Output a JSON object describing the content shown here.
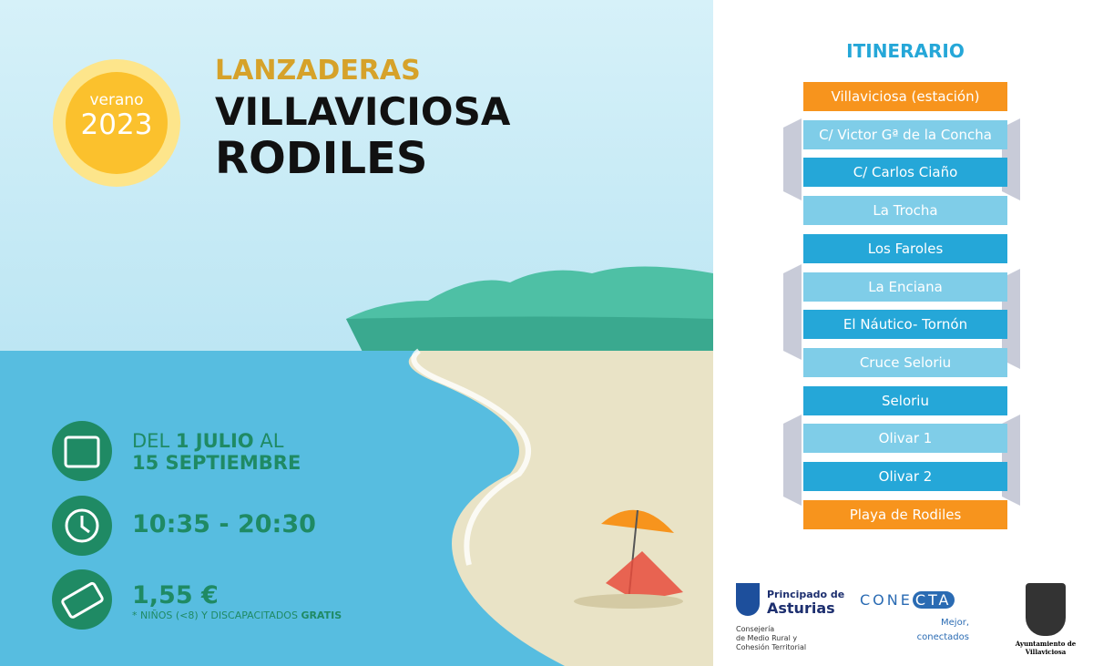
{
  "header": {
    "badge_top": "verano",
    "badge_year": "2023",
    "kicker": "LANZADERAS",
    "title_line1": "VILLAVICIOSA",
    "title_line2": "RODILES"
  },
  "info": {
    "dates_parts": [
      "DEL",
      "1 JULIO",
      "AL"
    ],
    "dates_end": "15 SEPTIEMBRE",
    "hours": "10:35 - 20:30",
    "price": "1,55 €",
    "note": "* NIÑOS (<8) Y DISCAPACITADOS",
    "note_bold": "GRATIS"
  },
  "itinerary": {
    "title": "ITINERARIO",
    "stops": [
      "Villaviciosa (estación)",
      "C/ Victor Gª de la Concha",
      "C/ Carlos Ciaño",
      "La Trocha",
      "Los Faroles",
      "La Enciana",
      "El Náutico- Tornón",
      "Cruce Seloriu",
      "Seloriu",
      "Olivar 1",
      "Olivar 2",
      "Playa de Rodiles"
    ]
  },
  "logos": {
    "principado": [
      "Principado de",
      "Asturias"
    ],
    "consejeria": [
      "Consejería",
      "de Medio Rural y",
      "Cohesión Territorial"
    ],
    "conecta": [
      "CONE",
      "CTA"
    ],
    "conecta_tag": [
      "Mejor,",
      "conectados"
    ],
    "ayuntamiento": [
      "Ayuntamiento de",
      "Villaviciosa"
    ]
  }
}
